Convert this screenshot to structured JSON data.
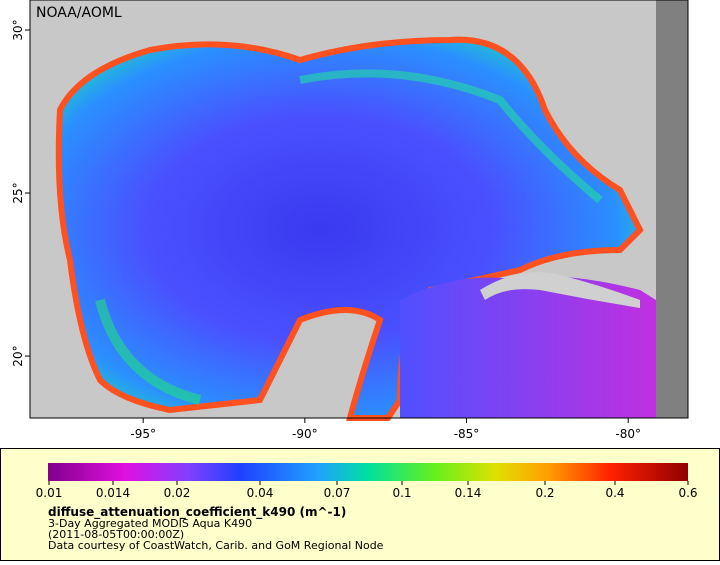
{
  "map": {
    "credit": "NOAA/AOML",
    "xlim": [
      -98.5,
      -78.15
    ],
    "ylim": [
      18.1,
      30.92
    ],
    "xticks": [
      {
        "value": -95,
        "label": "-95°"
      },
      {
        "value": -90,
        "label": "-90°"
      },
      {
        "value": -85,
        "label": "-85°"
      },
      {
        "value": -80,
        "label": "-80°"
      }
    ],
    "yticks": [
      {
        "value": 20,
        "label": "20°"
      },
      {
        "value": 25,
        "label": "25°"
      },
      {
        "value": 30,
        "label": "30°"
      }
    ]
  },
  "legend": {
    "colorbar_ticks": [
      0.01,
      0.014,
      0.02,
      0.04,
      0.07,
      0.1,
      0.14,
      0.2,
      0.4,
      0.6
    ],
    "variable": "diffuse_attenuation_coefficient_k490 (m^-1)",
    "dataset": "3-Day Aggregated MODIS Aqua K490",
    "time": "(2011-08-05T00:00:00Z)",
    "source": "Data courtesy of CoastWatch, Carib. and GoM Regional Node"
  }
}
